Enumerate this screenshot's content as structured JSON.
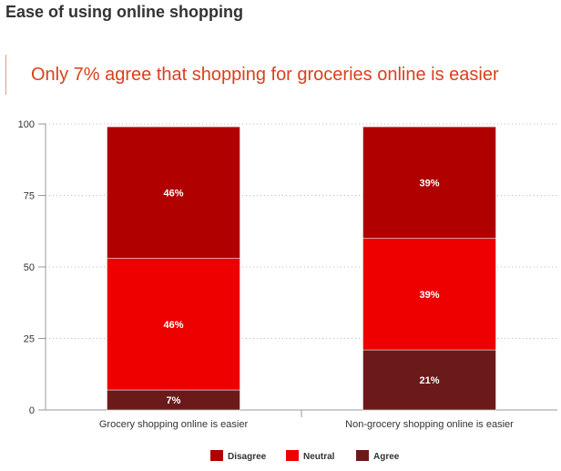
{
  "page": {
    "title": "Ease of using online shopping",
    "headline": "Only 7% agree that shopping for groceries online is easier"
  },
  "chart_data": {
    "type": "bar",
    "stacked": true,
    "categories": [
      "Grocery shopping online is easier",
      "Non-grocery shopping online is easier"
    ],
    "series": [
      {
        "name": "Agree",
        "values": [
          7,
          21
        ],
        "labels": [
          "7%",
          "21%"
        ],
        "color": "#6b1a1a"
      },
      {
        "name": "Neutral",
        "values": [
          46,
          39
        ],
        "labels": [
          "46%",
          "39%"
        ],
        "color": "#ee0000"
      },
      {
        "name": "Disagree",
        "values": [
          46,
          39
        ],
        "labels": [
          "46%",
          "39%"
        ],
        "color": "#b00000"
      }
    ],
    "legend_order": [
      "Disagree",
      "Neutral",
      "Agree"
    ],
    "yticks": [
      0,
      25,
      50,
      75,
      100
    ],
    "ylim": [
      0,
      100
    ],
    "grid": true,
    "legend_position": "bottom"
  }
}
